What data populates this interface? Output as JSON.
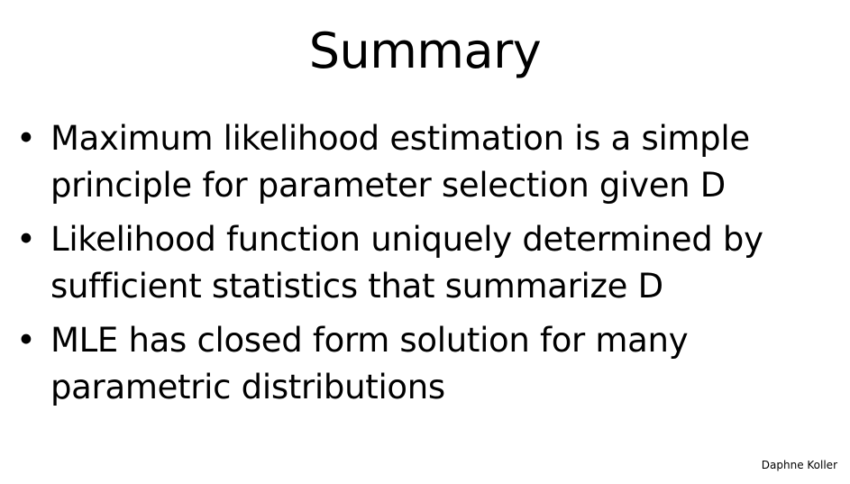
{
  "slide": {
    "title": "Summary",
    "bullet_marker": "•",
    "bullets": [
      {
        "text": "Maximum likelihood estimation is a simple principle for parameter selection given D"
      },
      {
        "text": "Likelihood function uniquely determined by sufficient statistics that summarize D"
      },
      {
        "text": "MLE has closed form solution for many parametric distributions"
      }
    ],
    "credit": "Daphne Koller"
  },
  "colors": {
    "background": "#ffffff",
    "text": "#000000"
  }
}
